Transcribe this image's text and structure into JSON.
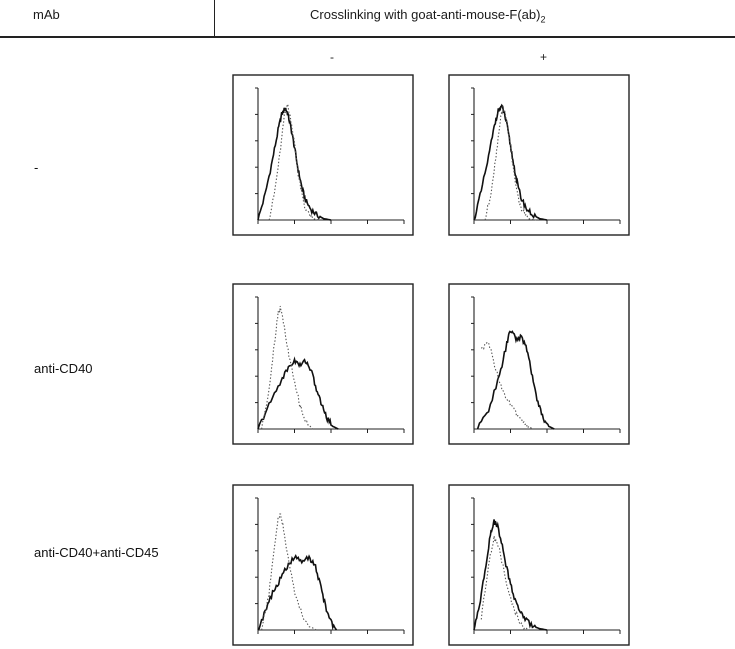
{
  "header": {
    "mab_label": "mAb",
    "crosslinking_label": "Crosslinking with goat-anti-mouse-F(ab)",
    "crosslinking_subscript": "2"
  },
  "columns": [
    "-",
    "+"
  ],
  "rows": [
    "-",
    "anti-CD40",
    "anti-CD40+anti-CD45"
  ],
  "chart_data": [
    {
      "type": "line",
      "row": "-",
      "column": "-",
      "series": [
        {
          "style": "solid",
          "points": [
            [
              0,
              0
            ],
            [
              0.2,
              20
            ],
            [
              0.4,
              46
            ],
            [
              0.55,
              68
            ],
            [
              0.65,
              80
            ],
            [
              0.75,
              85
            ],
            [
              0.82,
              80
            ],
            [
              0.9,
              70
            ],
            [
              1.0,
              55
            ],
            [
              1.1,
              38
            ],
            [
              1.2,
              25
            ],
            [
              1.3,
              15
            ],
            [
              1.45,
              8
            ],
            [
              1.6,
              4
            ],
            [
              1.8,
              1
            ],
            [
              2.0,
              0
            ]
          ]
        },
        {
          "style": "dotted",
          "points": [
            [
              0.3,
              0
            ],
            [
              0.45,
              20
            ],
            [
              0.6,
              50
            ],
            [
              0.72,
              78
            ],
            [
              0.8,
              88
            ],
            [
              0.9,
              76
            ],
            [
              1.0,
              58
            ],
            [
              1.1,
              35
            ],
            [
              1.2,
              20
            ],
            [
              1.3,
              8
            ],
            [
              1.5,
              1
            ],
            [
              1.7,
              0
            ]
          ]
        }
      ]
    },
    {
      "type": "line",
      "row": "-",
      "column": "+",
      "series": [
        {
          "style": "solid",
          "points": [
            [
              0,
              0
            ],
            [
              0.2,
              22
            ],
            [
              0.4,
              48
            ],
            [
              0.55,
              70
            ],
            [
              0.65,
              82
            ],
            [
              0.75,
              86
            ],
            [
              0.82,
              82
            ],
            [
              0.9,
              72
            ],
            [
              1.0,
              56
            ],
            [
              1.1,
              40
            ],
            [
              1.2,
              26
            ],
            [
              1.3,
              16
            ],
            [
              1.45,
              8
            ],
            [
              1.6,
              4
            ],
            [
              1.8,
              1
            ],
            [
              2.0,
              0
            ]
          ]
        },
        {
          "style": "dotted",
          "points": [
            [
              0.3,
              0
            ],
            [
              0.45,
              18
            ],
            [
              0.6,
              48
            ],
            [
              0.72,
              76
            ],
            [
              0.8,
              86
            ],
            [
              0.9,
              74
            ],
            [
              1.0,
              56
            ],
            [
              1.1,
              34
            ],
            [
              1.2,
              18
            ],
            [
              1.3,
              8
            ],
            [
              1.5,
              1
            ],
            [
              1.7,
              0
            ]
          ]
        }
      ]
    },
    {
      "type": "line",
      "row": "anti-CD40",
      "column": "-",
      "series": [
        {
          "style": "solid",
          "points": [
            [
              0,
              0
            ],
            [
              0.3,
              18
            ],
            [
              0.6,
              35
            ],
            [
              0.8,
              45
            ],
            [
              1.0,
              52
            ],
            [
              1.15,
              48
            ],
            [
              1.3,
              52
            ],
            [
              1.45,
              45
            ],
            [
              1.6,
              30
            ],
            [
              1.75,
              18
            ],
            [
              1.9,
              8
            ],
            [
              2.05,
              2
            ],
            [
              2.2,
              0
            ]
          ]
        },
        {
          "style": "dotted",
          "points": [
            [
              0.1,
              0
            ],
            [
              0.3,
              30
            ],
            [
              0.45,
              65
            ],
            [
              0.55,
              88
            ],
            [
              0.62,
              92
            ],
            [
              0.7,
              80
            ],
            [
              0.85,
              55
            ],
            [
              1.0,
              35
            ],
            [
              1.15,
              18
            ],
            [
              1.3,
              6
            ],
            [
              1.5,
              0
            ]
          ]
        }
      ]
    },
    {
      "type": "line",
      "row": "anti-CD40",
      "column": "+",
      "series": [
        {
          "style": "solid",
          "points": [
            [
              0.1,
              0
            ],
            [
              0.4,
              15
            ],
            [
              0.7,
              40
            ],
            [
              0.9,
              65
            ],
            [
              1.0,
              75
            ],
            [
              1.15,
              68
            ],
            [
              1.3,
              70
            ],
            [
              1.45,
              60
            ],
            [
              1.6,
              40
            ],
            [
              1.75,
              20
            ],
            [
              1.9,
              8
            ],
            [
              2.05,
              2
            ],
            [
              2.2,
              0
            ]
          ]
        },
        {
          "style": "dotted",
          "points": [
            [
              0.2,
              60
            ],
            [
              0.4,
              66
            ],
            [
              0.6,
              45
            ],
            [
              0.8,
              28
            ],
            [
              1.0,
              18
            ],
            [
              1.2,
              10
            ],
            [
              1.4,
              4
            ],
            [
              1.6,
              0
            ]
          ]
        }
      ]
    },
    {
      "type": "line",
      "row": "anti-CD40+anti-CD45",
      "column": "-",
      "series": [
        {
          "style": "solid",
          "points": [
            [
              0,
              0
            ],
            [
              0.2,
              14
            ],
            [
              0.4,
              28
            ],
            [
              0.6,
              38
            ],
            [
              0.8,
              48
            ],
            [
              1.0,
              55
            ],
            [
              1.2,
              52
            ],
            [
              1.4,
              55
            ],
            [
              1.55,
              50
            ],
            [
              1.7,
              35
            ],
            [
              1.85,
              18
            ],
            [
              2.0,
              6
            ],
            [
              2.15,
              0
            ]
          ]
        },
        {
          "style": "dotted",
          "points": [
            [
              0.1,
              0
            ],
            [
              0.3,
              28
            ],
            [
              0.45,
              62
            ],
            [
              0.55,
              85
            ],
            [
              0.62,
              88
            ],
            [
              0.7,
              76
            ],
            [
              0.85,
              50
            ],
            [
              1.0,
              30
            ],
            [
              1.2,
              12
            ],
            [
              1.4,
              3
            ],
            [
              1.6,
              0
            ]
          ]
        }
      ]
    },
    {
      "type": "line",
      "row": "anti-CD40+anti-CD45",
      "column": "+",
      "series": [
        {
          "style": "solid",
          "points": [
            [
              0,
              0
            ],
            [
              0.15,
              18
            ],
            [
              0.3,
              45
            ],
            [
              0.45,
              72
            ],
            [
              0.55,
              82
            ],
            [
              0.65,
              78
            ],
            [
              0.8,
              60
            ],
            [
              0.95,
              40
            ],
            [
              1.1,
              25
            ],
            [
              1.25,
              15
            ],
            [
              1.4,
              8
            ],
            [
              1.6,
              3
            ],
            [
              1.8,
              1
            ],
            [
              2.0,
              0
            ]
          ]
        },
        {
          "style": "dotted",
          "points": [
            [
              0.2,
              10
            ],
            [
              0.4,
              50
            ],
            [
              0.55,
              70
            ],
            [
              0.7,
              60
            ],
            [
              0.9,
              35
            ],
            [
              1.1,
              15
            ],
            [
              1.3,
              4
            ],
            [
              1.5,
              0
            ]
          ]
        }
      ]
    }
  ]
}
